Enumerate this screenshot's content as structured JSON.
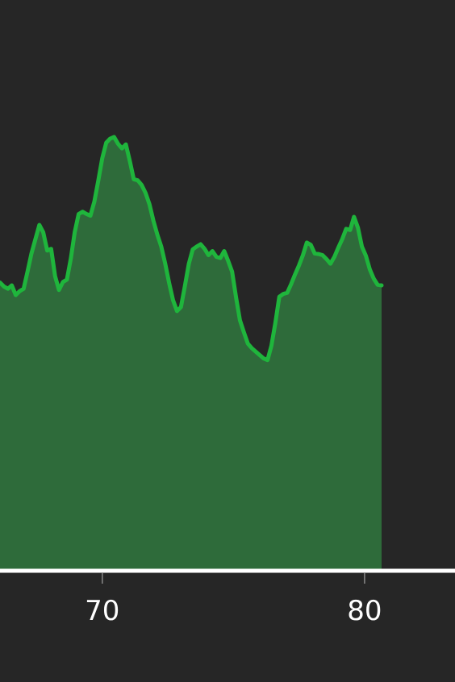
{
  "chart_data": {
    "type": "area",
    "title": "",
    "xlabel": "",
    "ylabel": "",
    "xlim": [
      66.1,
      83.45
    ],
    "ylim": [
      0,
      100
    ],
    "grid": false,
    "legend": "none",
    "colors": {
      "background": "#262626",
      "line": "#1fb53c",
      "fill": "#2e6b3a",
      "axis": "#ffffff",
      "tick": "#888888"
    },
    "x_ticks": [
      {
        "value": 70,
        "label": "70"
      },
      {
        "value": 80,
        "label": "80"
      }
    ],
    "series": [
      {
        "points": [
          [
            66.1,
            50.5
          ],
          [
            66.25,
            49.8
          ],
          [
            66.4,
            49.4
          ],
          [
            66.55,
            50.0
          ],
          [
            66.7,
            48.3
          ],
          [
            66.85,
            49.0
          ],
          [
            67.0,
            49.4
          ],
          [
            67.15,
            52.4
          ],
          [
            67.3,
            55.6
          ],
          [
            67.45,
            58.1
          ],
          [
            67.6,
            60.6
          ],
          [
            67.75,
            59.3
          ],
          [
            67.9,
            56.1
          ],
          [
            68.05,
            56.4
          ],
          [
            68.2,
            51.6
          ],
          [
            68.35,
            49.2
          ],
          [
            68.5,
            50.6
          ],
          [
            68.65,
            51.0
          ],
          [
            68.8,
            54.7
          ],
          [
            68.95,
            59.3
          ],
          [
            69.1,
            62.5
          ],
          [
            69.25,
            62.9
          ],
          [
            69.4,
            62.5
          ],
          [
            69.55,
            62.2
          ],
          [
            69.7,
            64.7
          ],
          [
            69.85,
            68.4
          ],
          [
            70.0,
            72.3
          ],
          [
            70.15,
            75.0
          ],
          [
            70.3,
            75.7
          ],
          [
            70.45,
            76.0
          ],
          [
            70.6,
            74.8
          ],
          [
            70.75,
            74.0
          ],
          [
            70.9,
            74.7
          ],
          [
            71.05,
            71.8
          ],
          [
            71.2,
            68.6
          ],
          [
            71.35,
            68.4
          ],
          [
            71.5,
            67.6
          ],
          [
            71.65,
            66.2
          ],
          [
            71.8,
            64.2
          ],
          [
            71.95,
            61.3
          ],
          [
            72.1,
            58.9
          ],
          [
            72.25,
            56.8
          ],
          [
            72.4,
            53.8
          ],
          [
            72.55,
            50.4
          ],
          [
            72.7,
            47.4
          ],
          [
            72.85,
            45.5
          ],
          [
            73.0,
            46.2
          ],
          [
            73.15,
            49.9
          ],
          [
            73.3,
            53.8
          ],
          [
            73.45,
            56.3
          ],
          [
            73.6,
            56.8
          ],
          [
            73.75,
            57.2
          ],
          [
            73.9,
            56.4
          ],
          [
            74.05,
            55.3
          ],
          [
            74.2,
            56.0
          ],
          [
            74.35,
            55.0
          ],
          [
            74.5,
            54.8
          ],
          [
            74.65,
            56.0
          ],
          [
            74.8,
            54.3
          ],
          [
            74.95,
            52.4
          ],
          [
            75.1,
            47.9
          ],
          [
            75.25,
            43.9
          ],
          [
            75.4,
            41.8
          ],
          [
            75.55,
            39.8
          ],
          [
            75.7,
            39.0
          ],
          [
            75.85,
            38.4
          ],
          [
            76.0,
            37.8
          ],
          [
            76.15,
            37.2
          ],
          [
            76.3,
            36.9
          ],
          [
            76.45,
            39.4
          ],
          [
            76.6,
            43.4
          ],
          [
            76.75,
            48.0
          ],
          [
            76.9,
            48.5
          ],
          [
            77.05,
            48.7
          ],
          [
            77.2,
            50.2
          ],
          [
            77.35,
            51.9
          ],
          [
            77.5,
            53.5
          ],
          [
            77.65,
            55.3
          ],
          [
            77.8,
            57.5
          ],
          [
            77.95,
            57.1
          ],
          [
            78.1,
            55.6
          ],
          [
            78.25,
            55.5
          ],
          [
            78.4,
            55.3
          ],
          [
            78.55,
            54.6
          ],
          [
            78.7,
            53.8
          ],
          [
            78.85,
            55.0
          ],
          [
            79.0,
            56.6
          ],
          [
            79.15,
            58.1
          ],
          [
            79.3,
            59.9
          ],
          [
            79.45,
            59.7
          ],
          [
            79.6,
            62.0
          ],
          [
            79.75,
            60.1
          ],
          [
            79.9,
            56.8
          ],
          [
            80.05,
            55.2
          ],
          [
            80.2,
            52.8
          ],
          [
            80.35,
            51.2
          ],
          [
            80.5,
            50.1
          ],
          [
            80.65,
            50.0
          ]
        ]
      }
    ]
  }
}
